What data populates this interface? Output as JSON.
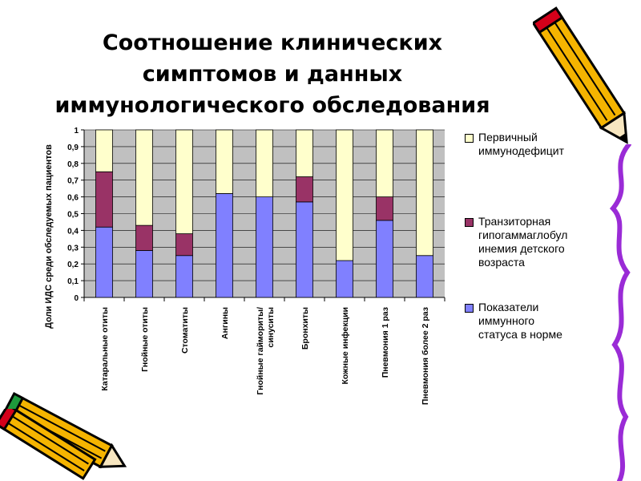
{
  "title_lines": [
    "Соотношение клинических",
    "симптомов и данных",
    "иммунологического обследования"
  ],
  "chart_data": {
    "type": "bar",
    "stacked": true,
    "categories": [
      "Катаральные отиты",
      "Гнойные отиты",
      "Стоматиты",
      "Ангины",
      "Гнойные гаймориты/ синуситы",
      "Бронхиты",
      "Кожные инфекции",
      "Пневмония 1 раз",
      "Пневмония более 2 раз"
    ],
    "series": [
      {
        "name": "Показатели иммунного статуса в норме",
        "color": "#8080ff",
        "values": [
          0.42,
          0.28,
          0.25,
          0.62,
          0.6,
          0.57,
          0.22,
          0.46,
          0.25
        ]
      },
      {
        "name": "Транзиторная гипогаммаглобулинемия детского возраста",
        "color": "#993366",
        "values": [
          0.33,
          0.15,
          0.13,
          0.0,
          0.0,
          0.15,
          0.0,
          0.14,
          0.0
        ]
      },
      {
        "name": "Первичный иммунодефицит",
        "color": "#ffffcc",
        "values": [
          0.25,
          0.57,
          0.62,
          0.38,
          0.4,
          0.28,
          0.78,
          0.4,
          0.75
        ]
      }
    ],
    "ylabel": "Доли ИДС среди обследуемых пациентов",
    "xlabel": "",
    "ylim": [
      0,
      1
    ],
    "yticks": [
      "0",
      "0,1",
      "0,2",
      "0,3",
      "0,4",
      "0,5",
      "0,6",
      "0,7",
      "0,8",
      "0,9",
      "1"
    ],
    "grid": true,
    "legend_position": "right",
    "legend_display": [
      {
        "series": 2,
        "text": "Первичный\nиммунодефицит"
      },
      {
        "series": 1,
        "text": "Транзиторная\nгипогаммаглобул\nинемия детского\nвозраста"
      },
      {
        "series": 0,
        "text": "Показатели\nиммунного\nстатуса в норме"
      }
    ],
    "plot_background": "#c0c0c0"
  },
  "decorations": [
    "pencil-icon",
    "pencil-icon",
    "pencil-icon"
  ]
}
